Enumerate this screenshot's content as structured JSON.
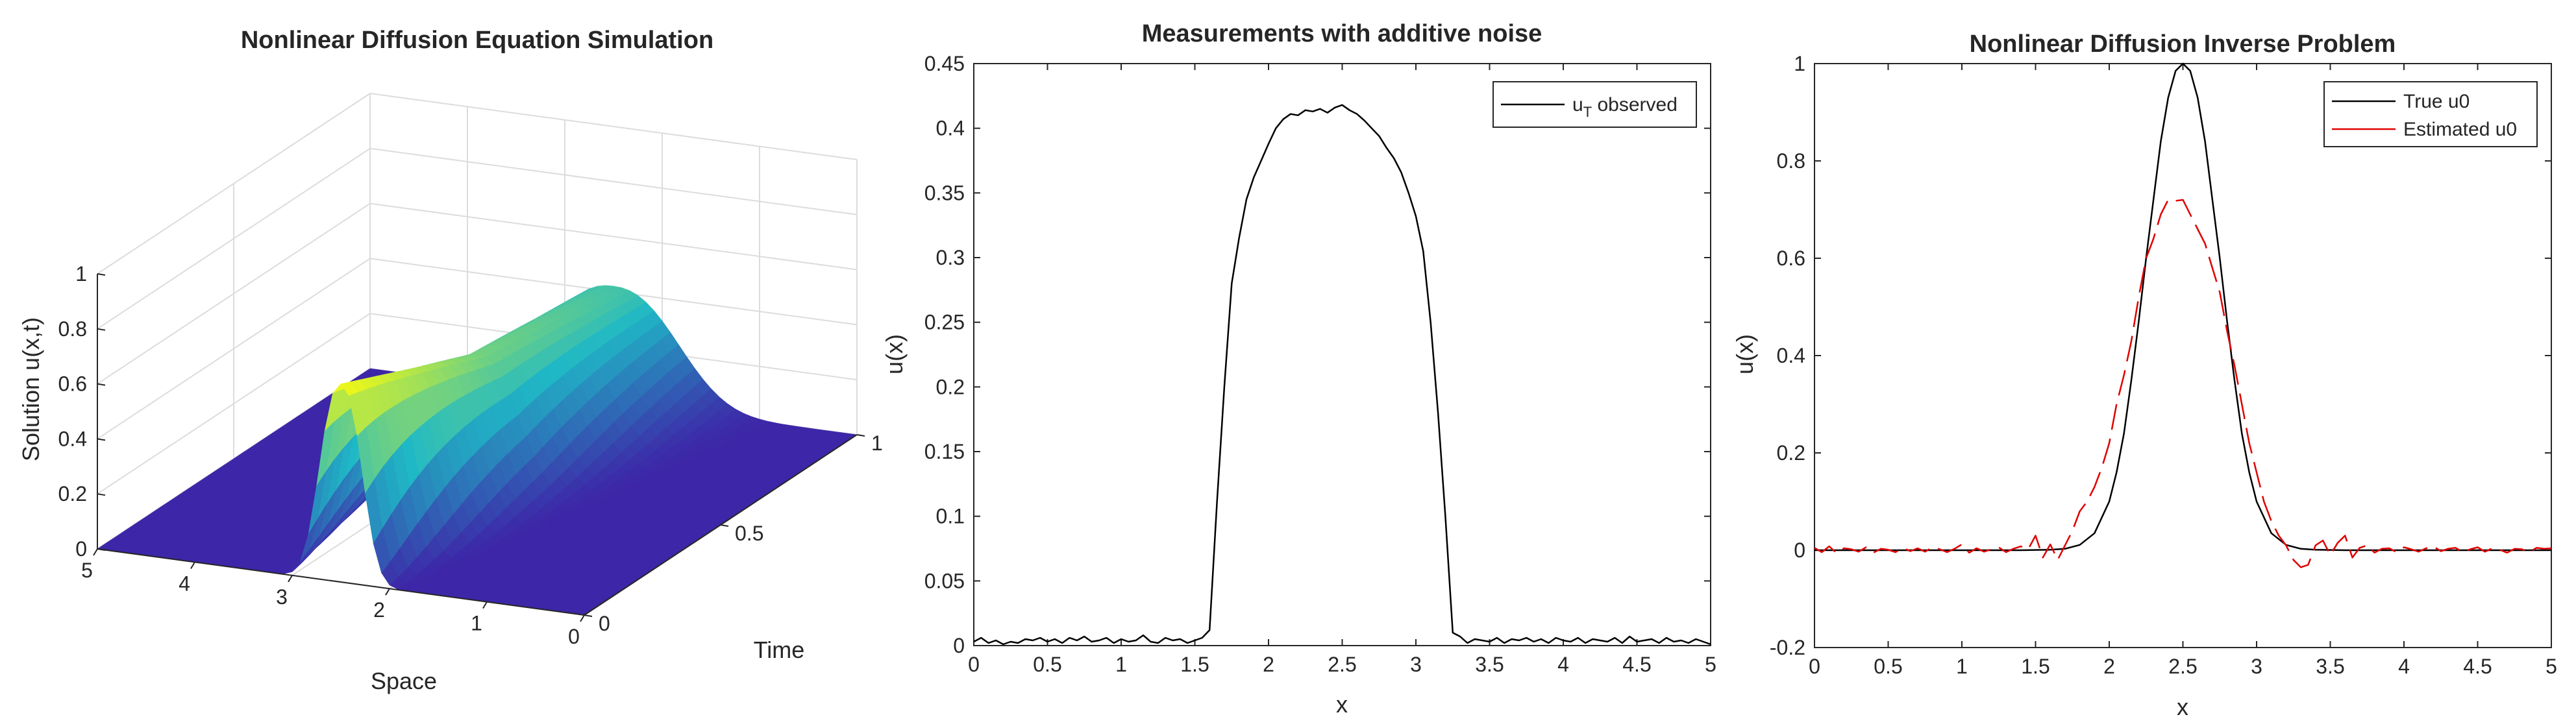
{
  "colors": {
    "axis": "#262626",
    "grid": "#dcdcdc",
    "measured": "#000000",
    "true_line": "#000000",
    "estimated_line": "#e00000",
    "surface_low": "#3d26a8",
    "surface_mid": "#1fb8c6",
    "surface_high": "#f9fb0e"
  },
  "chart_data": [
    {
      "type": "surface",
      "title": "Nonlinear Diffusion Equation Simulation",
      "xlabel": "Space",
      "ylabel": "Time",
      "zlabel": "Solution u(x,t)",
      "xlim": [
        0,
        5
      ],
      "ylim": [
        0,
        1
      ],
      "zlim": [
        0,
        1
      ],
      "x_ticks": [
        "0",
        "1",
        "2",
        "3",
        "4",
        "5"
      ],
      "y_ticks": [
        "0",
        "0.5",
        "1"
      ],
      "z_ticks": [
        "0",
        "0.2",
        "0.4",
        "0.6",
        "0.8",
        "1"
      ],
      "colormap": "parula",
      "grid": true,
      "profile_by_time": [
        {
          "t": 0.0,
          "center": 2.5,
          "peak": 0.72,
          "width": 0.28
        },
        {
          "t": 0.5,
          "center": 2.5,
          "peak": 0.5,
          "width": 0.55
        },
        {
          "t": 1.0,
          "center": 2.5,
          "peak": 0.42,
          "width": 0.85
        }
      ]
    },
    {
      "type": "line",
      "title": "Measurements with additive noise",
      "xlabel": "x",
      "ylabel": "u(x)",
      "xlim": [
        0,
        5
      ],
      "ylim": [
        0,
        0.45
      ],
      "x_ticks": [
        "0",
        "0.5",
        "1",
        "1.5",
        "2",
        "2.5",
        "3",
        "3.5",
        "4",
        "4.5",
        "5"
      ],
      "y_ticks": [
        "0",
        "0.05",
        "0.1",
        "0.15",
        "0.2",
        "0.25",
        "0.3",
        "0.35",
        "0.4",
        "0.45"
      ],
      "legend": "top-right",
      "legend_entries": [
        {
          "name": "u",
          "subscript": "T",
          "suffix": " observed"
        }
      ],
      "series": [
        {
          "name": "uT observed",
          "color": "#000000",
          "x": [
            0,
            0.05,
            0.1,
            0.15,
            0.2,
            0.25,
            0.3,
            0.35,
            0.4,
            0.45,
            0.5,
            0.55,
            0.6,
            0.65,
            0.7,
            0.75,
            0.8,
            0.85,
            0.9,
            0.95,
            1,
            1.05,
            1.1,
            1.15,
            1.2,
            1.25,
            1.3,
            1.35,
            1.4,
            1.45,
            1.5,
            1.55,
            1.6,
            1.65,
            1.7,
            1.75,
            1.8,
            1.85,
            1.9,
            1.95,
            2,
            2.05,
            2.1,
            2.15,
            2.2,
            2.25,
            2.3,
            2.35,
            2.4,
            2.45,
            2.5,
            2.55,
            2.6,
            2.65,
            2.7,
            2.75,
            2.8,
            2.85,
            2.9,
            2.95,
            3,
            3.05,
            3.1,
            3.15,
            3.2,
            3.25,
            3.3,
            3.35,
            3.4,
            3.45,
            3.5,
            3.55,
            3.6,
            3.65,
            3.7,
            3.75,
            3.8,
            3.85,
            3.9,
            3.95,
            4,
            4.05,
            4.1,
            4.15,
            4.2,
            4.25,
            4.3,
            4.35,
            4.4,
            4.45,
            4.5,
            4.55,
            4.6,
            4.65,
            4.7,
            4.75,
            4.8,
            4.85,
            4.9,
            4.95,
            5
          ],
          "y": [
            0.003,
            0.006,
            0.002,
            0.004,
            0.001,
            0.003,
            0.002,
            0.005,
            0.004,
            0.006,
            0.003,
            0.005,
            0.002,
            0.006,
            0.004,
            0.007,
            0.003,
            0.004,
            0.006,
            0.002,
            0.005,
            0.003,
            0.004,
            0.008,
            0.003,
            0.002,
            0.006,
            0.004,
            0.005,
            0.002,
            0.004,
            0.006,
            0.012,
            0.11,
            0.2,
            0.28,
            0.315,
            0.345,
            0.362,
            0.375,
            0.388,
            0.4,
            0.407,
            0.411,
            0.41,
            0.414,
            0.413,
            0.415,
            0.412,
            0.416,
            0.418,
            0.414,
            0.411,
            0.406,
            0.4,
            0.394,
            0.385,
            0.377,
            0.366,
            0.35,
            0.332,
            0.305,
            0.25,
            0.18,
            0.1,
            0.01,
            0.007,
            0.002,
            0.005,
            0.004,
            0.003,
            0.006,
            0.002,
            0.005,
            0.004,
            0.006,
            0.003,
            0.005,
            0.002,
            0.006,
            0.004,
            0.003,
            0.006,
            0.002,
            0.005,
            0.004,
            0.003,
            0.006,
            0.002,
            0.007,
            0.003,
            0.004,
            0.005,
            0.002,
            0.006,
            0.003,
            0.004,
            0.002,
            0.005,
            0.003,
            0.001
          ]
        }
      ]
    },
    {
      "type": "line",
      "title": "Nonlinear Diffusion Inverse Problem",
      "xlabel": "x",
      "ylabel": "u(x)",
      "xlim": [
        0,
        5
      ],
      "ylim": [
        -0.2,
        1
      ],
      "x_ticks": [
        "0",
        "0.5",
        "1",
        "1.5",
        "2",
        "2.5",
        "3",
        "3.5",
        "4",
        "4.5",
        "5"
      ],
      "y_ticks": [
        "-0.2",
        "0",
        "0.2",
        "0.4",
        "0.6",
        "0.8",
        "1"
      ],
      "legend": "top-right",
      "series": [
        {
          "name": "True u0",
          "color": "#000000",
          "style": "solid",
          "x": [
            0,
            0.2,
            0.4,
            0.6,
            0.8,
            1,
            1.2,
            1.4,
            1.6,
            1.7,
            1.8,
            1.9,
            2,
            2.05,
            2.1,
            2.15,
            2.2,
            2.25,
            2.3,
            2.35,
            2.4,
            2.45,
            2.5,
            2.55,
            2.6,
            2.65,
            2.7,
            2.75,
            2.8,
            2.85,
            2.9,
            2.95,
            3,
            3.1,
            3.2,
            3.3,
            3.4,
            3.6,
            3.8,
            4,
            4.2,
            4.4,
            4.6,
            4.8,
            5
          ],
          "y": [
            0,
            0,
            0,
            0,
            0,
            0,
            0,
            0,
            0.001,
            0.003,
            0.011,
            0.035,
            0.1,
            0.16,
            0.24,
            0.35,
            0.47,
            0.6,
            0.72,
            0.84,
            0.93,
            0.985,
            1,
            0.985,
            0.93,
            0.84,
            0.72,
            0.6,
            0.47,
            0.35,
            0.24,
            0.16,
            0.1,
            0.035,
            0.011,
            0.003,
            0.001,
            0,
            0,
            0,
            0,
            0,
            0,
            0,
            0
          ]
        },
        {
          "name": "Estimated u0",
          "color": "#e00000",
          "style": "dashed",
          "x": [
            0,
            0.05,
            0.1,
            0.15,
            0.2,
            0.25,
            0.3,
            0.35,
            0.4,
            0.45,
            0.5,
            0.55,
            0.6,
            0.65,
            0.7,
            0.75,
            0.8,
            0.85,
            0.9,
            0.95,
            1,
            1.05,
            1.1,
            1.15,
            1.2,
            1.25,
            1.3,
            1.35,
            1.4,
            1.45,
            1.5,
            1.55,
            1.6,
            1.65,
            1.7,
            1.75,
            1.8,
            1.85,
            1.9,
            1.95,
            2,
            2.05,
            2.1,
            2.15,
            2.2,
            2.25,
            2.3,
            2.35,
            2.4,
            2.45,
            2.5,
            2.55,
            2.6,
            2.65,
            2.7,
            2.75,
            2.8,
            2.85,
            2.9,
            2.95,
            3,
            3.05,
            3.1,
            3.15,
            3.2,
            3.25,
            3.3,
            3.35,
            3.4,
            3.45,
            3.5,
            3.55,
            3.6,
            3.65,
            3.7,
            3.75,
            3.8,
            3.85,
            3.9,
            3.95,
            4,
            4.05,
            4.1,
            4.15,
            4.2,
            4.25,
            4.3,
            4.35,
            4.4,
            4.45,
            4.5,
            4.55,
            4.6,
            4.65,
            4.7,
            4.75,
            4.8,
            4.85,
            4.9,
            4.95,
            5
          ],
          "y": [
            0.005,
            -0.004,
            0.008,
            -0.006,
            0.004,
            0.002,
            -0.003,
            0.006,
            -0.005,
            0.003,
            0.001,
            -0.004,
            0.005,
            -0.002,
            0.004,
            -0.003,
            0.006,
            0.002,
            -0.004,
            0.003,
            0.012,
            -0.005,
            0.004,
            -0.003,
            0.002,
            0.006,
            -0.004,
            0.003,
            0.008,
            0.002,
            0.03,
            -0.015,
            0.012,
            -0.02,
            0.01,
            0.04,
            0.08,
            0.1,
            0.13,
            0.17,
            0.22,
            0.3,
            0.36,
            0.43,
            0.52,
            0.6,
            0.64,
            0.69,
            0.72,
            0.718,
            0.72,
            0.69,
            0.66,
            0.63,
            0.58,
            0.53,
            0.45,
            0.38,
            0.3,
            0.22,
            0.16,
            0.1,
            0.06,
            0.03,
            0.01,
            -0.02,
            -0.035,
            -0.03,
            0.01,
            0.02,
            -0.01,
            0.015,
            0.03,
            -0.015,
            0.005,
            0.01,
            -0.005,
            0.003,
            0.004,
            -0.004,
            0.006,
            0.002,
            -0.003,
            0.004,
            0.008,
            -0.002,
            0.003,
            0.005,
            -0.004,
            0.002,
            0.006,
            -0.003,
            0.004,
            0.001,
            -0.005,
            0.003,
            0.002,
            -0.004,
            0.005,
            0.003,
            0.004
          ]
        }
      ]
    }
  ]
}
